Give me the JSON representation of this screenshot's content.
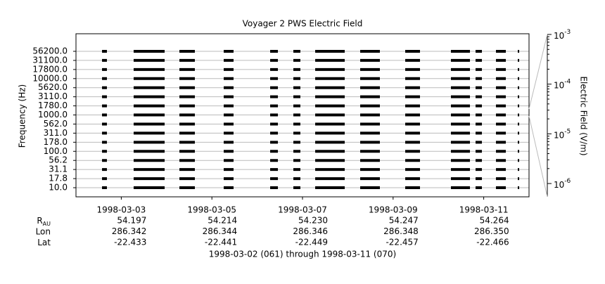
{
  "chart_data": {
    "type": "coverage",
    "title": "Voyager 2 PWS Electric Field",
    "ylabel": "Frequency (Hz)",
    "channels": [
      "56200.0",
      "31100.0",
      "17800.0",
      "10000.0",
      "5620.0",
      "3110.0",
      "1780.0",
      "1000.0",
      "562.0",
      "311.0",
      "178.0",
      "100.0",
      "56.2",
      "31.1",
      "17.8",
      "10.0"
    ],
    "xlim": [
      2,
      12
    ],
    "xticks": [
      {
        "value": 3,
        "label": "1998-03-03"
      },
      {
        "value": 5,
        "label": "1998-03-05"
      },
      {
        "value": 7,
        "label": "1998-03-07"
      },
      {
        "value": 9,
        "label": "1998-03-09"
      },
      {
        "value": 11,
        "label": "1998-03-11"
      }
    ],
    "segments": [
      [
        2.575,
        2.683
      ],
      [
        3.273,
        3.957
      ],
      [
        4.283,
        4.624
      ],
      [
        5.261,
        5.478
      ],
      [
        6.286,
        6.457
      ],
      [
        6.798,
        6.953
      ],
      [
        7.28,
        7.932
      ],
      [
        8.273,
        8.708
      ],
      [
        9.267,
        9.593
      ],
      [
        10.276,
        10.696
      ],
      [
        10.82,
        10.96
      ],
      [
        11.27,
        11.488
      ],
      [
        11.752,
        11.783
      ]
    ],
    "color": "#000000",
    "zlabel": "Electric Field (V/m)",
    "zlog": true,
    "zlim": [
      5.4e-07,
      0.001
    ],
    "zticks": [
      {
        "value": 0.001,
        "label": "10",
        "exponent": "-3"
      },
      {
        "value": 0.0001,
        "label": "10",
        "exponent": "-4"
      },
      {
        "value": 1e-05,
        "label": "10",
        "exponent": "-5"
      },
      {
        "value": 1e-06,
        "label": "10",
        "exponent": "-6"
      }
    ],
    "ephemeris": [
      {
        "label": "R",
        "sub": "AU",
        "values": [
          "54.197",
          "54.214",
          "54.230",
          "54.247",
          "54.264"
        ]
      },
      {
        "label": "Lon",
        "values": [
          "286.342",
          "286.344",
          "286.346",
          "286.348",
          "286.350"
        ]
      },
      {
        "label": "Lat",
        "values": [
          "-22.433",
          "-22.441",
          "-22.449",
          "-22.457",
          "-22.466"
        ]
      }
    ],
    "footer": "1998-03-02 (061) through 1998-03-11 (070)"
  }
}
